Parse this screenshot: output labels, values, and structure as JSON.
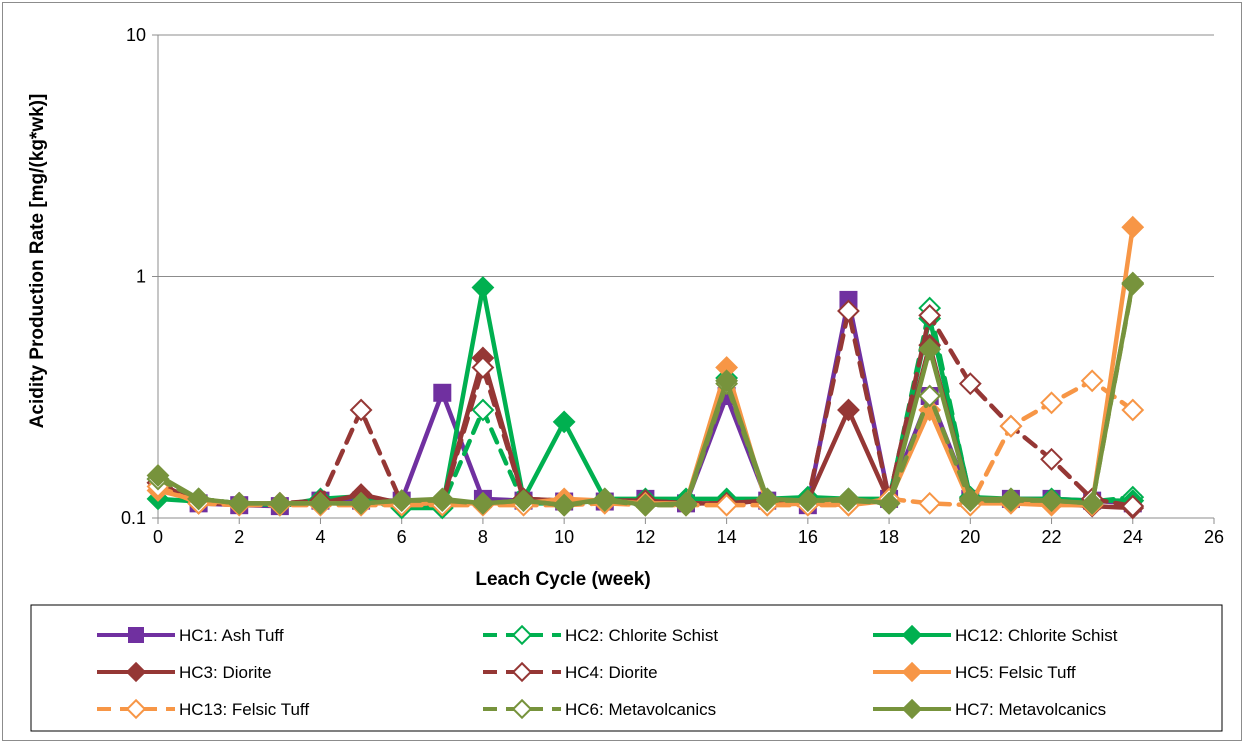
{
  "chart_data": {
    "type": "line",
    "title": "",
    "xlabel": "Leach Cycle (week)",
    "ylabel": "Acidity Production Rate  [mg/(kg*wk)]",
    "y_scale": "log",
    "xlim": [
      0,
      26
    ],
    "ylim": [
      0.1,
      10
    ],
    "x_ticks": [
      "0",
      "2",
      "4",
      "6",
      "8",
      "10",
      "12",
      "14",
      "16",
      "18",
      "20",
      "22",
      "24",
      "26"
    ],
    "y_ticks": [
      "0.1",
      "1",
      "10"
    ],
    "grid": "horizontal",
    "legend_position": "bottom",
    "x": [
      0,
      1,
      2,
      3,
      4,
      5,
      6,
      7,
      8,
      9,
      10,
      11,
      12,
      13,
      14,
      15,
      16,
      17,
      18,
      19,
      20,
      21,
      22,
      23,
      24
    ],
    "series": [
      {
        "name": "HC1: Ash Tuff",
        "color": "#7030a0",
        "marker": "square",
        "filled": true,
        "dashed": false,
        "values": [
          0.14,
          0.115,
          0.113,
          0.112,
          0.118,
          0.118,
          0.118,
          0.33,
          0.12,
          0.118,
          0.117,
          0.117,
          0.12,
          0.115,
          0.32,
          0.118,
          0.113,
          0.8,
          0.12,
          0.32,
          0.12,
          0.12,
          0.12,
          0.118,
          0.115
        ]
      },
      {
        "name": "HC2: Chlorite Schist",
        "color": "#00b050",
        "marker": "diamond",
        "filled": false,
        "dashed": true,
        "values": [
          0.145,
          0.12,
          0.115,
          0.113,
          0.115,
          0.115,
          0.113,
          0.113,
          0.28,
          0.115,
          0.115,
          0.118,
          0.115,
          0.115,
          0.38,
          0.115,
          0.118,
          0.115,
          0.118,
          0.74,
          0.12,
          0.118,
          0.117,
          0.117,
          0.122
        ]
      },
      {
        "name": "HC12: Chlorite Schist",
        "color": "#00b050",
        "marker": "diamond",
        "filled": true,
        "dashed": false,
        "values": [
          0.12,
          0.117,
          0.115,
          0.113,
          0.12,
          0.123,
          0.11,
          0.11,
          0.9,
          0.12,
          0.25,
          0.12,
          0.12,
          0.12,
          0.12,
          0.12,
          0.122,
          0.12,
          0.12,
          0.67,
          0.122,
          0.12,
          0.12,
          0.118,
          0.118
        ]
      },
      {
        "name": "HC3: Diorite",
        "color": "#953735",
        "marker": "diamond",
        "filled": true,
        "dashed": false,
        "values": [
          0.14,
          0.115,
          0.115,
          0.115,
          0.115,
          0.125,
          0.115,
          0.115,
          0.46,
          0.12,
          0.118,
          0.118,
          0.118,
          0.115,
          0.115,
          0.118,
          0.118,
          0.28,
          0.118,
          0.52,
          0.12,
          0.118,
          0.115,
          0.112,
          0.11
        ]
      },
      {
        "name": "HC4: Diorite",
        "color": "#953735",
        "marker": "diamond",
        "filled": false,
        "dashed": true,
        "values": [
          0.14,
          0.118,
          0.115,
          0.115,
          0.118,
          0.28,
          0.115,
          0.115,
          0.42,
          0.12,
          0.118,
          0.118,
          0.118,
          0.115,
          0.115,
          0.118,
          0.118,
          0.72,
          0.12,
          0.69,
          0.36,
          0.24,
          0.175,
          0.12,
          0.112
        ]
      },
      {
        "name": "HC5: Felsic Tuff",
        "color": "#f79646",
        "marker": "diamond",
        "filled": true,
        "dashed": false,
        "values": [
          0.13,
          0.118,
          0.115,
          0.115,
          0.115,
          0.115,
          0.115,
          0.115,
          0.115,
          0.115,
          0.12,
          0.118,
          0.115,
          0.115,
          0.42,
          0.113,
          0.115,
          0.113,
          0.118,
          0.28,
          0.115,
          0.115,
          0.113,
          0.113,
          1.6
        ]
      },
      {
        "name": "HC13: Felsic Tuff",
        "color": "#f79646",
        "marker": "diamond",
        "filled": false,
        "dashed": true,
        "values": [
          0.135,
          0.115,
          0.113,
          0.113,
          0.113,
          0.113,
          0.113,
          0.113,
          0.113,
          0.113,
          0.113,
          0.115,
          0.113,
          0.113,
          0.113,
          0.113,
          0.113,
          0.113,
          0.12,
          0.115,
          0.113,
          0.24,
          0.3,
          0.37,
          0.28
        ]
      },
      {
        "name": "HC6: Metavolcanics",
        "color": "#77933c",
        "marker": "diamond",
        "filled": false,
        "dashed": true,
        "values": [
          0.145,
          0.12,
          0.115,
          0.115,
          0.115,
          0.115,
          0.118,
          0.118,
          0.115,
          0.118,
          0.113,
          0.118,
          0.113,
          0.113,
          0.36,
          0.118,
          0.118,
          0.118,
          0.115,
          0.32,
          0.118,
          0.118,
          0.118,
          0.115,
          0.93
        ]
      },
      {
        "name": "HC7: Metavolcanics",
        "color": "#77933c",
        "marker": "diamond",
        "filled": true,
        "dashed": false,
        "values": [
          0.15,
          0.12,
          0.115,
          0.115,
          0.115,
          0.115,
          0.118,
          0.12,
          0.115,
          0.118,
          0.113,
          0.12,
          0.113,
          0.115,
          0.37,
          0.12,
          0.118,
          0.12,
          0.115,
          0.5,
          0.12,
          0.12,
          0.118,
          0.115,
          0.94
        ]
      }
    ]
  }
}
